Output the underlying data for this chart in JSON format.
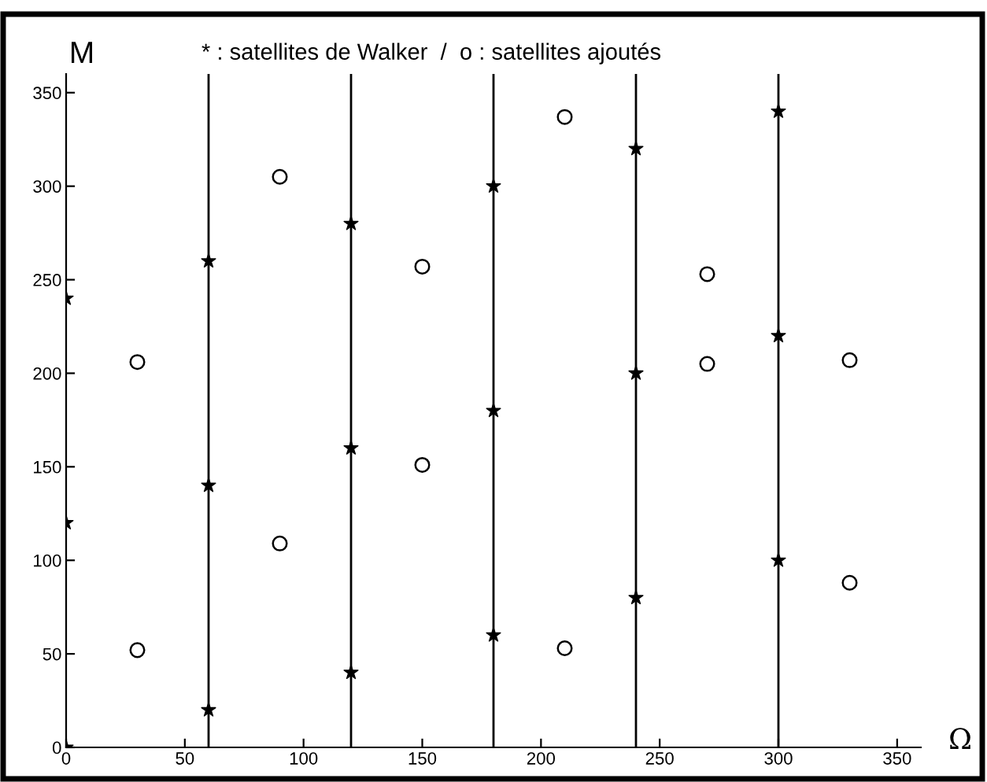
{
  "chart_data": {
    "type": "scatter",
    "title": "* : satellites de Walker  /  o : satellites ajoutés",
    "xlabel": "Ω",
    "ylabel": "M",
    "series": [
      {
        "marker": "star",
        "color": "#000000",
        "x": [
          0,
          0,
          0,
          60,
          60,
          60,
          120,
          120,
          120,
          180,
          180,
          180,
          240,
          240,
          240,
          300,
          300,
          300
        ],
        "values": [
          0,
          120,
          240,
          20,
          140,
          260,
          40,
          160,
          280,
          60,
          180,
          300,
          80,
          200,
          320,
          100,
          220,
          340
        ]
      },
      {
        "marker": "circle",
        "color": "#000000",
        "x": [
          30,
          30,
          90,
          90,
          150,
          150,
          210,
          210,
          270,
          270,
          330,
          330
        ],
        "values": [
          52,
          206,
          109,
          305,
          151,
          257,
          53,
          337,
          205,
          253,
          88,
          207
        ]
      }
    ],
    "ref_lines": [
      {
        "axis": "x",
        "value": 60
      },
      {
        "axis": "x",
        "value": 120
      },
      {
        "axis": "x",
        "value": 180
      },
      {
        "axis": "x",
        "value": 240
      },
      {
        "axis": "x",
        "value": 300
      }
    ],
    "xlim": [
      0,
      360
    ],
    "ylim": [
      0,
      360
    ],
    "xticks": [
      0,
      50,
      100,
      150,
      200,
      250,
      300,
      350
    ],
    "yticks": [
      0,
      50,
      100,
      150,
      200,
      250,
      300,
      350
    ],
    "grid": false,
    "legend": false
  }
}
